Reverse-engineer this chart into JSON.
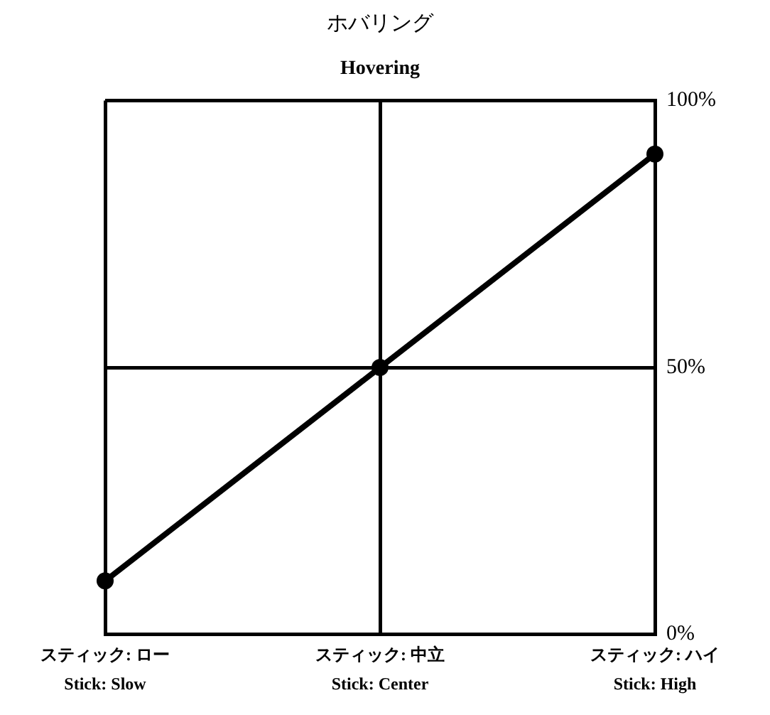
{
  "chart_data": {
    "type": "line",
    "title": "ホバリング",
    "subtitle": "Hovering",
    "categories": [
      "スティック: ロー\nStick: Slow",
      "スティック: 中立\nStick: Center",
      "スティック: ハイ\nStick: High"
    ],
    "values": [
      10,
      50,
      90
    ],
    "color": "#000000",
    "ylim": [
      0,
      100
    ],
    "yticks": [
      {
        "value": 0,
        "label": "0%"
      },
      {
        "value": 50,
        "label": "50%"
      },
      {
        "value": 100,
        "label": "100%"
      }
    ],
    "grid": true,
    "marker": "circle",
    "line_style": "solid"
  }
}
